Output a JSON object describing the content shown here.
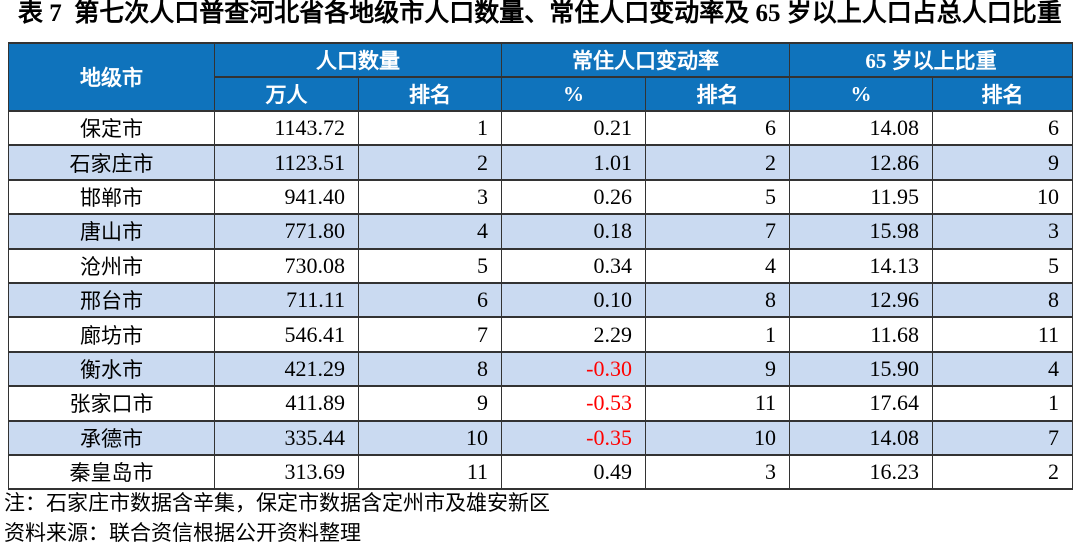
{
  "title": "表 7 第七次人口普查河北省各地级市人口数量、常住人口变动率及 65 岁以上人口占总人口比重",
  "table": {
    "columns": {
      "city": "地级市",
      "groups": [
        {
          "label": "人口数量",
          "sub": [
            "万人",
            "排名"
          ]
        },
        {
          "label": "常住人口变动率",
          "sub": [
            "%",
            "排名"
          ]
        },
        {
          "label": "65 岁以上比重",
          "sub": [
            "%",
            "排名"
          ]
        }
      ]
    },
    "rows": [
      {
        "city": "保定市",
        "pop": "1143.72",
        "pop_rank": "1",
        "change": "0.21",
        "change_rank": "6",
        "elderly": "14.08",
        "elderly_rank": "6"
      },
      {
        "city": "石家庄市",
        "pop": "1123.51",
        "pop_rank": "2",
        "change": "1.01",
        "change_rank": "2",
        "elderly": "12.86",
        "elderly_rank": "9"
      },
      {
        "city": "邯郸市",
        "pop": "941.40",
        "pop_rank": "3",
        "change": "0.26",
        "change_rank": "5",
        "elderly": "11.95",
        "elderly_rank": "10"
      },
      {
        "city": "唐山市",
        "pop": "771.80",
        "pop_rank": "4",
        "change": "0.18",
        "change_rank": "7",
        "elderly": "15.98",
        "elderly_rank": "3"
      },
      {
        "city": "沧州市",
        "pop": "730.08",
        "pop_rank": "5",
        "change": "0.34",
        "change_rank": "4",
        "elderly": "14.13",
        "elderly_rank": "5"
      },
      {
        "city": "邢台市",
        "pop": "711.11",
        "pop_rank": "6",
        "change": "0.10",
        "change_rank": "8",
        "elderly": "12.96",
        "elderly_rank": "8"
      },
      {
        "city": "廊坊市",
        "pop": "546.41",
        "pop_rank": "7",
        "change": "2.29",
        "change_rank": "1",
        "elderly": "11.68",
        "elderly_rank": "11"
      },
      {
        "city": "衡水市",
        "pop": "421.29",
        "pop_rank": "8",
        "change": "-0.30",
        "change_rank": "9",
        "elderly": "15.90",
        "elderly_rank": "4"
      },
      {
        "city": "张家口市",
        "pop": "411.89",
        "pop_rank": "9",
        "change": "-0.53",
        "change_rank": "11",
        "elderly": "17.64",
        "elderly_rank": "1"
      },
      {
        "city": "承德市",
        "pop": "335.44",
        "pop_rank": "10",
        "change": "-0.35",
        "change_rank": "10",
        "elderly": "14.08",
        "elderly_rank": "7"
      },
      {
        "city": "秦皇岛市",
        "pop": "313.69",
        "pop_rank": "11",
        "change": "0.49",
        "change_rank": "3",
        "elderly": "16.23",
        "elderly_rank": "2"
      }
    ]
  },
  "notes": {
    "note": "注：石家庄市数据含辛集，保定市数据含定州市及雄安新区",
    "source": "资料来源：联合资信根据公开资料整理"
  },
  "colors": {
    "header_bg": "#0f73bc",
    "header_text": "#ffffff",
    "band_bg": "#cadaf1",
    "negative": "#ff0000",
    "border": "#333333",
    "text": "#000000"
  },
  "chart_data": {
    "type": "table",
    "title": "表 7　第七次人口普查河北省各地级市人口数量、常住人口变动率及 65 岁以上人口占总人口比重",
    "columns": [
      "地级市",
      "人口数量 万人",
      "人口数量 排名",
      "常住人口变动率 %",
      "常住人口变动率 排名",
      "65 岁以上比重 %",
      "65 岁以上比重 排名"
    ],
    "rows": [
      [
        "保定市",
        1143.72,
        1,
        0.21,
        6,
        14.08,
        6
      ],
      [
        "石家庄市",
        1123.51,
        2,
        1.01,
        2,
        12.86,
        9
      ],
      [
        "邯郸市",
        941.4,
        3,
        0.26,
        5,
        11.95,
        10
      ],
      [
        "唐山市",
        771.8,
        4,
        0.18,
        7,
        15.98,
        3
      ],
      [
        "沧州市",
        730.08,
        5,
        0.34,
        4,
        14.13,
        5
      ],
      [
        "邢台市",
        711.11,
        6,
        0.1,
        8,
        12.96,
        8
      ],
      [
        "廊坊市",
        546.41,
        7,
        2.29,
        1,
        11.68,
        11
      ],
      [
        "衡水市",
        421.29,
        8,
        -0.3,
        9,
        15.9,
        4
      ],
      [
        "张家口市",
        411.89,
        9,
        -0.53,
        11,
        17.64,
        1
      ],
      [
        "承德市",
        335.44,
        10,
        -0.35,
        10,
        14.08,
        7
      ],
      [
        "秦皇岛市",
        313.69,
        11,
        0.49,
        3,
        16.23,
        2
      ]
    ],
    "notes": [
      "注：石家庄市数据含辛集，保定市数据含定州市及雄安新区",
      "资料来源：联合资信根据公开资料整理"
    ]
  }
}
